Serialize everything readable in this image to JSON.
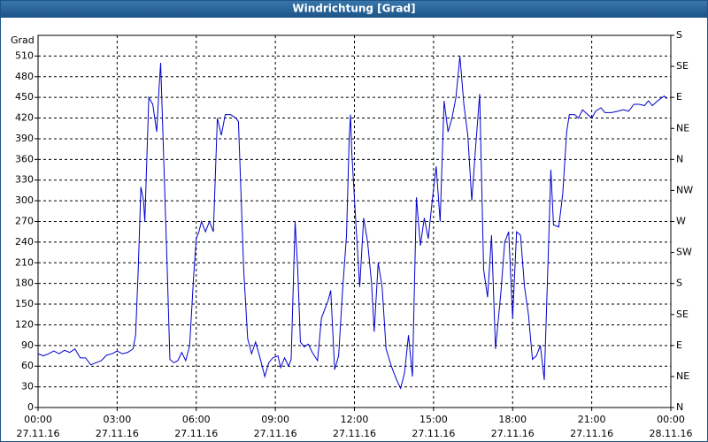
{
  "chart_data": {
    "type": "line",
    "title": "Windrichtung [Grad]",
    "y_label": "Grad",
    "xlim": [
      0,
      24
    ],
    "xticks": [
      {
        "value": 0,
        "label": "00:00"
      },
      {
        "value": 3,
        "label": "03:00"
      },
      {
        "value": 6,
        "label": "06:00"
      },
      {
        "value": 9,
        "label": "09:00"
      },
      {
        "value": 12,
        "label": "12:00"
      },
      {
        "value": 15,
        "label": "15:00"
      },
      {
        "value": 18,
        "label": "18:00"
      },
      {
        "value": 21,
        "label": "21:00"
      },
      {
        "value": 24,
        "label": "00:00"
      }
    ],
    "xtick_dates": [
      "27.11.16",
      "27.11.16",
      "27.11.16",
      "27.11.16",
      "27.11.16",
      "27.11.16",
      "27.11.16",
      "27.11.16",
      "28.11.16"
    ],
    "ylim": [
      0,
      540
    ],
    "yticks": [
      0,
      30,
      60,
      90,
      120,
      150,
      180,
      210,
      240,
      270,
      300,
      330,
      360,
      390,
      420,
      450,
      480,
      510
    ],
    "y2lim": [
      0,
      540
    ],
    "y2ticks": [
      {
        "value": 0,
        "label": "N"
      },
      {
        "value": 45,
        "label": "NE"
      },
      {
        "value": 90,
        "label": "E"
      },
      {
        "value": 135,
        "label": "SE"
      },
      {
        "value": 180,
        "label": "S"
      },
      {
        "value": 225,
        "label": "SW"
      },
      {
        "value": 270,
        "label": "W"
      },
      {
        "value": 315,
        "label": "NW"
      },
      {
        "value": 360,
        "label": "N"
      },
      {
        "value": 405,
        "label": "NE"
      },
      {
        "value": 450,
        "label": "E"
      },
      {
        "value": 495,
        "label": "SE"
      },
      {
        "value": 540,
        "label": "S"
      }
    ],
    "grid": true,
    "series": [
      {
        "color": "#0000cc",
        "x": [
          0,
          0.2,
          0.4,
          0.6,
          0.8,
          1.0,
          1.2,
          1.4,
          1.6,
          1.8,
          2.0,
          2.2,
          2.4,
          2.6,
          2.8,
          3.0,
          3.2,
          3.4,
          3.6,
          3.7,
          3.8,
          3.9,
          4.0,
          4.05,
          4.2,
          4.35,
          4.5,
          4.6,
          4.65,
          4.75,
          4.9,
          5.0,
          5.15,
          5.3,
          5.45,
          5.6,
          5.75,
          5.9,
          6.0,
          6.1,
          6.2,
          6.35,
          6.5,
          6.65,
          6.8,
          6.95,
          7.1,
          7.3,
          7.5,
          7.6,
          7.8,
          7.95,
          8.1,
          8.25,
          8.4,
          8.6,
          8.75,
          8.9,
          9.1,
          9.2,
          9.35,
          9.5,
          9.6,
          9.75,
          9.85,
          9.95,
          10.1,
          10.25,
          10.4,
          10.6,
          10.75,
          10.9,
          11.0,
          11.1,
          11.25,
          11.4,
          11.55,
          11.7,
          11.8,
          11.85,
          11.9,
          12.05,
          12.2,
          12.35,
          12.5,
          12.65,
          12.75,
          12.9,
          13.05,
          13.2,
          13.4,
          13.6,
          13.75,
          13.9,
          14.05,
          14.2,
          14.35,
          14.5,
          14.65,
          14.8,
          14.95,
          15.1,
          15.25,
          15.4,
          15.55,
          15.7,
          15.85,
          16.0,
          16.15,
          16.3,
          16.45,
          16.6,
          16.75,
          16.9,
          17.05,
          17.2,
          17.35,
          17.55,
          17.7,
          17.85,
          18.0,
          18.15,
          18.3,
          18.45,
          18.6,
          18.75,
          18.9,
          19.05,
          19.2,
          19.35,
          19.45,
          19.55,
          19.75,
          19.9,
          20.05,
          20.15,
          20.35,
          20.5,
          20.65,
          20.85,
          21.0,
          21.15,
          21.35,
          21.5,
          21.75,
          22.0,
          22.2,
          22.4,
          22.6,
          22.8,
          23.0,
          23.15,
          23.3,
          23.5,
          23.75,
          23.85
        ],
        "values": [
          78,
          75,
          78,
          82,
          78,
          83,
          80,
          85,
          72,
          72,
          62,
          65,
          68,
          76,
          78,
          82,
          78,
          80,
          85,
          105,
          200,
          320,
          300,
          270,
          450,
          440,
          400,
          470,
          500,
          380,
          200,
          70,
          65,
          68,
          80,
          68,
          90,
          190,
          245,
          255,
          270,
          255,
          270,
          255,
          420,
          395,
          425,
          425,
          420,
          415,
          200,
          100,
          78,
          95,
          75,
          45,
          65,
          72,
          75,
          58,
          72,
          60,
          70,
          270,
          200,
          95,
          88,
          92,
          80,
          68,
          130,
          145,
          155,
          170,
          55,
          75,
          170,
          250,
          390,
          425,
          370,
          270,
          175,
          275,
          240,
          180,
          110,
          210,
          175,
          85,
          60,
          40,
          28,
          50,
          105,
          45,
          305,
          235,
          275,
          245,
          300,
          350,
          270,
          445,
          400,
          420,
          450,
          510,
          440,
          395,
          300,
          380,
          455,
          200,
          160,
          250,
          85,
          165,
          240,
          255,
          130,
          255,
          250,
          175,
          135,
          70,
          75,
          90,
          40,
          220,
          345,
          265,
          262,
          310,
          400,
          425,
          425,
          420,
          432,
          425,
          420,
          430,
          435,
          428,
          428,
          430,
          432,
          430,
          440,
          440,
          438,
          445,
          438,
          445,
          452,
          448
        ]
      }
    ]
  }
}
